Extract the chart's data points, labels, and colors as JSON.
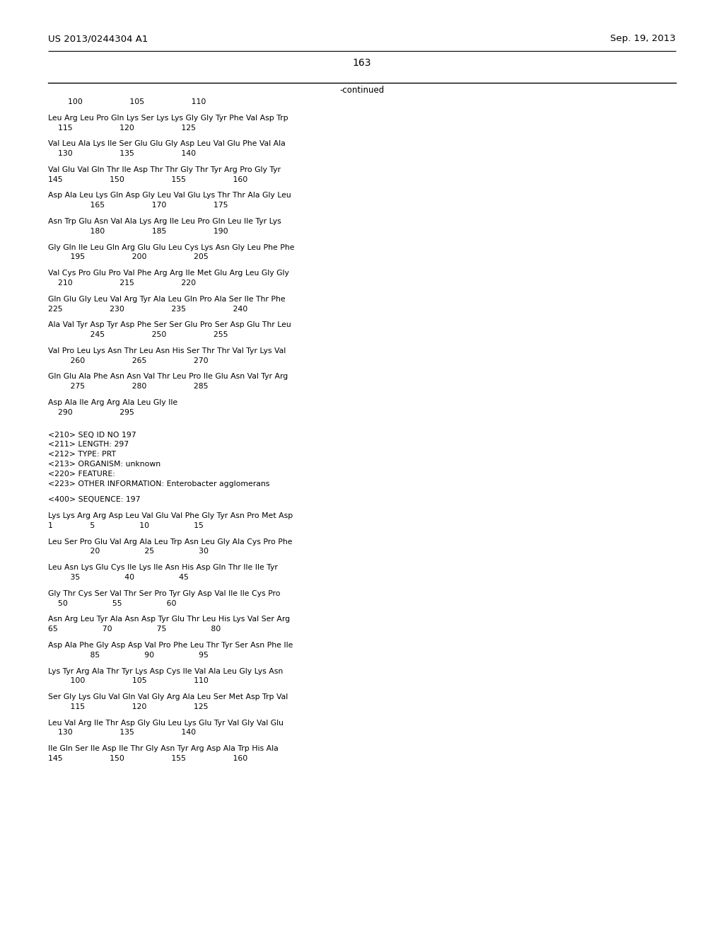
{
  "header_left": "US 2013/0244304 A1",
  "header_right": "Sep. 19, 2013",
  "page_number": "163",
  "continued_label": "-continued",
  "background_color": "#ffffff",
  "text_color": "#000000",
  "lines": [
    {
      "text": "        100                   105                   110"
    },
    {
      "text": ""
    },
    {
      "text": "Leu Arg Leu Pro Gln Lys Ser Lys Lys Gly Gly Tyr Phe Val Asp Trp"
    },
    {
      "text": "    115                   120                   125"
    },
    {
      "text": ""
    },
    {
      "text": "Val Leu Ala Lys Ile Ser Glu Glu Gly Asp Leu Val Glu Phe Val Ala"
    },
    {
      "text": "    130                   135                   140"
    },
    {
      "text": ""
    },
    {
      "text": "Val Glu Val Gln Thr Ile Asp Thr Thr Gly Thr Tyr Arg Pro Gly Tyr"
    },
    {
      "text": "145                   150                   155                   160"
    },
    {
      "text": ""
    },
    {
      "text": "Asp Ala Leu Lys Gln Asp Gly Leu Val Glu Lys Thr Thr Ala Gly Leu"
    },
    {
      "text": "                 165                   170                   175"
    },
    {
      "text": ""
    },
    {
      "text": "Asn Trp Glu Asn Val Ala Lys Arg Ile Leu Pro Gln Leu Ile Tyr Lys"
    },
    {
      "text": "                 180                   185                   190"
    },
    {
      "text": ""
    },
    {
      "text": "Gly Gln Ile Leu Gln Arg Glu Glu Leu Cys Lys Asn Gly Leu Phe Phe"
    },
    {
      "text": "         195                   200                   205"
    },
    {
      "text": ""
    },
    {
      "text": "Val Cys Pro Glu Pro Val Phe Arg Arg Ile Met Glu Arg Leu Gly Gly"
    },
    {
      "text": "    210                   215                   220"
    },
    {
      "text": ""
    },
    {
      "text": "Gln Glu Gly Leu Val Arg Tyr Ala Leu Gln Pro Ala Ser Ile Thr Phe"
    },
    {
      "text": "225                   230                   235                   240"
    },
    {
      "text": ""
    },
    {
      "text": "Ala Val Tyr Asp Tyr Asp Phe Ser Ser Glu Pro Ser Asp Glu Thr Leu"
    },
    {
      "text": "                 245                   250                   255"
    },
    {
      "text": ""
    },
    {
      "text": "Val Pro Leu Lys Asn Thr Leu Asn His Ser Thr Thr Val Tyr Lys Val"
    },
    {
      "text": "         260                   265                   270"
    },
    {
      "text": ""
    },
    {
      "text": "Gln Glu Ala Phe Asn Asn Val Thr Leu Pro Ile Glu Asn Val Tyr Arg"
    },
    {
      "text": "         275                   280                   285"
    },
    {
      "text": ""
    },
    {
      "text": "Asp Ala Ile Arg Arg Ala Leu Gly Ile"
    },
    {
      "text": "    290                   295"
    },
    {
      "text": ""
    },
    {
      "text": ""
    },
    {
      "text": "<210> SEQ ID NO 197"
    },
    {
      "text": "<211> LENGTH: 297"
    },
    {
      "text": "<212> TYPE: PRT"
    },
    {
      "text": "<213> ORGANISM: unknown"
    },
    {
      "text": "<220> FEATURE:"
    },
    {
      "text": "<223> OTHER INFORMATION: Enterobacter agglomerans"
    },
    {
      "text": ""
    },
    {
      "text": "<400> SEQUENCE: 197"
    },
    {
      "text": ""
    },
    {
      "text": "Lys Lys Arg Arg Asp Leu Val Glu Val Phe Gly Tyr Asn Pro Met Asp"
    },
    {
      "text": "1               5                  10                  15"
    },
    {
      "text": ""
    },
    {
      "text": "Leu Ser Pro Glu Val Arg Ala Leu Trp Asn Leu Gly Ala Cys Pro Phe"
    },
    {
      "text": "                 20                  25                  30"
    },
    {
      "text": ""
    },
    {
      "text": "Leu Asn Lys Glu Cys Ile Lys Ile Asn His Asp Gln Thr Ile Ile Tyr"
    },
    {
      "text": "         35                  40                  45"
    },
    {
      "text": ""
    },
    {
      "text": "Gly Thr Cys Ser Val Thr Ser Pro Tyr Gly Asp Val Ile Ile Cys Pro"
    },
    {
      "text": "    50                  55                  60"
    },
    {
      "text": ""
    },
    {
      "text": "Asn Arg Leu Tyr Ala Asn Asp Tyr Glu Thr Leu His Lys Val Ser Arg"
    },
    {
      "text": "65                  70                  75                  80"
    },
    {
      "text": ""
    },
    {
      "text": "Asp Ala Phe Gly Asp Asp Val Pro Phe Leu Thr Tyr Ser Asn Phe Ile"
    },
    {
      "text": "                 85                  90                  95"
    },
    {
      "text": ""
    },
    {
      "text": "Lys Tyr Arg Ala Thr Tyr Lys Asp Cys Ile Val Ala Leu Gly Lys Asn"
    },
    {
      "text": "         100                   105                   110"
    },
    {
      "text": ""
    },
    {
      "text": "Ser Gly Lys Glu Val Gln Val Gly Arg Ala Leu Ser Met Asp Trp Val"
    },
    {
      "text": "         115                   120                   125"
    },
    {
      "text": ""
    },
    {
      "text": "Leu Val Arg Ile Thr Asp Gly Glu Leu Lys Glu Tyr Val Gly Val Glu"
    },
    {
      "text": "    130                   135                   140"
    },
    {
      "text": ""
    },
    {
      "text": "Ile Gln Ser Ile Asp Ile Thr Gly Asn Tyr Arg Asp Ala Trp His Ala"
    },
    {
      "text": "145                   150                   155                   160"
    }
  ]
}
